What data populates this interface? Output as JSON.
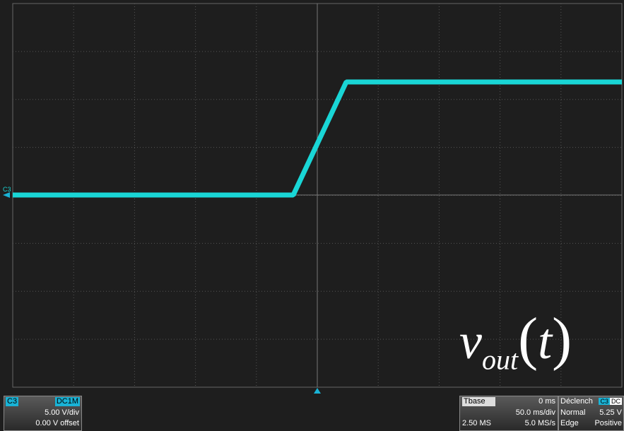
{
  "channel_marker": "C3",
  "annotation": {
    "symbol": "v",
    "subscript": "out",
    "open": "(",
    "argument": "t",
    "close": ")"
  },
  "channel_panel": {
    "channel": "C3",
    "coupling": "DC1M",
    "scale": "5.00 V/div",
    "offset": "0.00 V offset"
  },
  "timebase_panel": {
    "label": "Tbase",
    "delay": "0 ms",
    "scale": "50.0 ms/div",
    "samples": "2.50 MS",
    "rate": "5.0 MS/s"
  },
  "trigger_panel": {
    "label": "Déclench",
    "source": "C3",
    "coupling": "DC",
    "mode": "Normal",
    "level": "5.25 V",
    "type": "Edge",
    "slope": "Positive"
  }
}
